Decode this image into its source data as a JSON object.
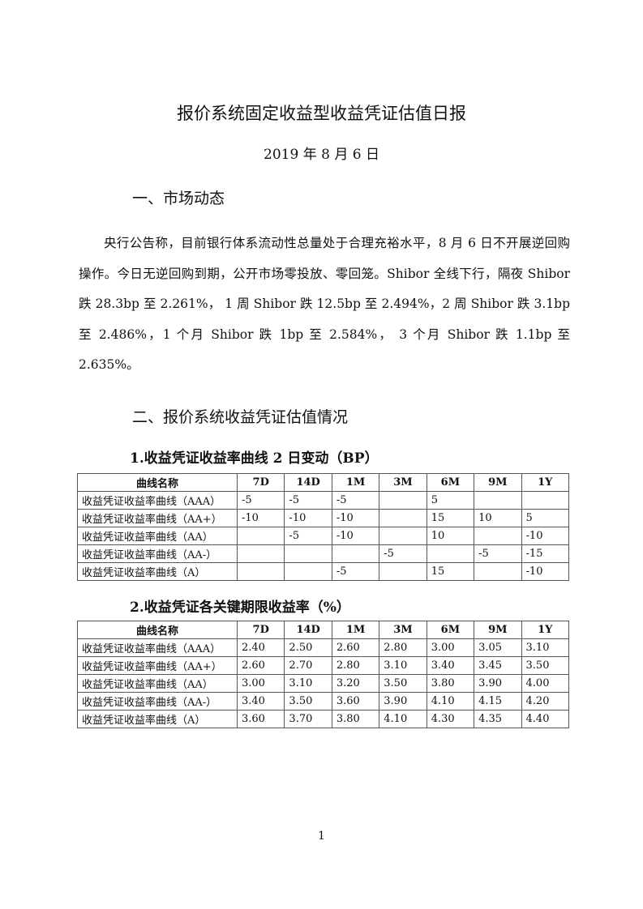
{
  "title": "报价系统固定收益型收益凭证估值日报",
  "date": "2019 年 8 月 6 日",
  "section1": {
    "heading": "一、市场动态",
    "paragraph": "央行公告称，目前银行体系流动性总量处于合理充裕水平，8 月 6 日不开展逆回购操作。今日无逆回购到期，公开市场零投放、零回笼。Shibor 全线下行，隔夜 Shibor 跌 28.3bp 至 2.261%， 1 周 Shibor 跌 12.5bp 至 2.494%，2 周 Shibor 跌 3.1bp 至 2.486%，1 个月 Shibor 跌 1bp 至 2.584%，  3 个月 Shibor 跌 1.1bp 至 2.635%。"
  },
  "section2": {
    "heading": "二、报价系统收益凭证估值情况",
    "table1": {
      "caption": "1.收益凭证收益率曲线 2 日变动（BP）",
      "headers": [
        "曲线名称",
        "7D",
        "14D",
        "1M",
        "3M",
        "6M",
        "9M",
        "1Y"
      ],
      "rows": [
        [
          "收益凭证收益率曲线（AAA）",
          "-5",
          "-5",
          "-5",
          "",
          "5",
          "",
          ""
        ],
        [
          "收益凭证收益率曲线（AA+）",
          "-10",
          "-10",
          "-10",
          "",
          "15",
          "10",
          "5"
        ],
        [
          "收益凭证收益率曲线（AA）",
          "",
          "-5",
          "-10",
          "",
          "10",
          "",
          "-10"
        ],
        [
          "收益凭证收益率曲线（AA-）",
          "",
          "",
          "",
          "-5",
          "",
          "-5",
          "-15"
        ],
        [
          "收益凭证收益率曲线（A）",
          "",
          "",
          "-5",
          "",
          "15",
          "",
          "-10"
        ]
      ]
    },
    "table2": {
      "caption": "2.收益凭证各关键期限收益率（%）",
      "headers": [
        "曲线名称",
        "7D",
        "14D",
        "1M",
        "3M",
        "6M",
        "9M",
        "1Y"
      ],
      "rows": [
        [
          "收益凭证收益率曲线（AAA）",
          "2.40",
          "2.50",
          "2.60",
          "2.80",
          "3.00",
          "3.05",
          "3.10"
        ],
        [
          "收益凭证收益率曲线（AA+）",
          "2.60",
          "2.70",
          "2.80",
          "3.10",
          "3.40",
          "3.45",
          "3.50"
        ],
        [
          "收益凭证收益率曲线（AA）",
          "3.00",
          "3.10",
          "3.20",
          "3.50",
          "3.80",
          "3.90",
          "4.00"
        ],
        [
          "收益凭证收益率曲线（AA-）",
          "3.40",
          "3.50",
          "3.60",
          "3.90",
          "4.10",
          "4.15",
          "4.20"
        ],
        [
          "收益凭证收益率曲线（A）",
          "3.60",
          "3.70",
          "3.80",
          "4.10",
          "4.30",
          "4.35",
          "4.40"
        ]
      ]
    }
  },
  "page_number": "1"
}
